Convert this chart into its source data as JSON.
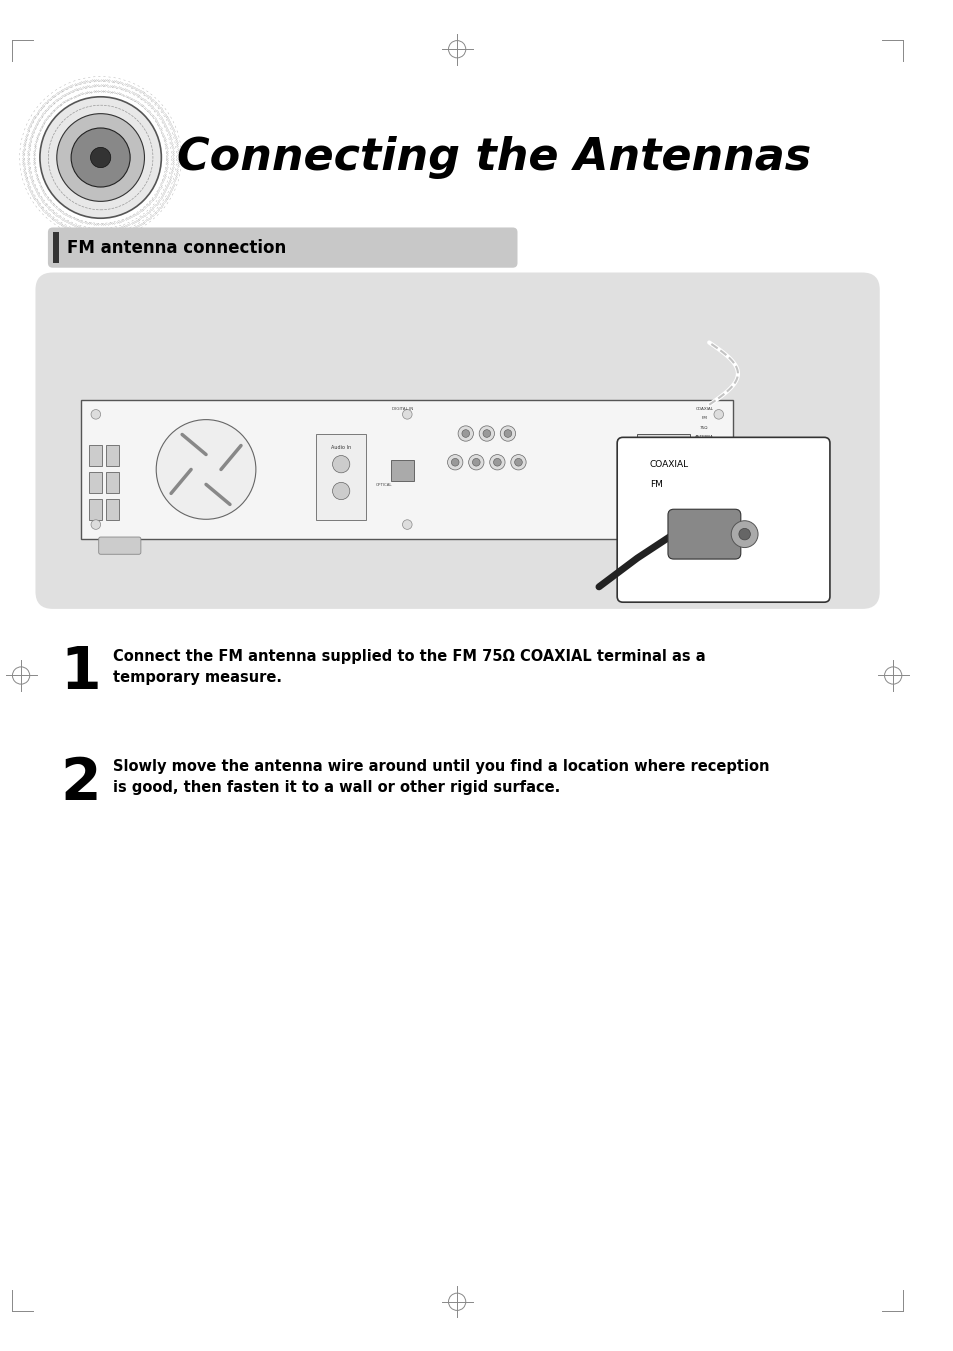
{
  "title": "Connecting the Antennas",
  "section_header": "FM antenna connection",
  "step1_num": "1",
  "step1_text": "Connect the FM antenna supplied to the FM 75Ω COAXIAL terminal as a\ntemporary measure.",
  "step2_num": "2",
  "step2_text": "Slowly move the antenna wire around until you find a location where reception\nis good, then fasten it to a wall or other rigid surface.",
  "bg_color": "#ffffff",
  "panel_bg": "#e0e0e0",
  "header_bg": "#c8c8c8",
  "header_text_color": "#000000",
  "title_color": "#000000",
  "step_num_color": "#000000",
  "step_text_color": "#000000",
  "page_width": 9.54,
  "page_height": 13.51
}
